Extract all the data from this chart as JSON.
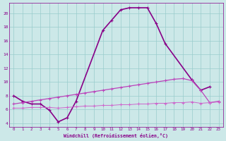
{
  "xlabel": "Windchill (Refroidissement éolien,°C)",
  "background_color": "#cce8e8",
  "grid_color": "#99cccc",
  "line_dark": "#880088",
  "line_mid": "#bb44bb",
  "line_light": "#cc66cc",
  "main_curve_x": [
    0,
    1,
    2,
    3,
    4,
    5,
    6,
    7,
    10,
    11,
    12,
    13,
    14,
    15,
    16,
    17,
    20,
    21,
    22
  ],
  "main_curve_y": [
    8.0,
    7.2,
    6.8,
    6.8,
    5.9,
    4.2,
    4.8,
    7.2,
    17.5,
    19.0,
    20.5,
    20.8,
    20.8,
    20.8,
    18.5,
    15.6,
    10.3,
    8.8,
    9.3
  ],
  "rise_curve_x": [
    0,
    1,
    2,
    3,
    4,
    5,
    6,
    7,
    8,
    9,
    10,
    11,
    12,
    13,
    14,
    15,
    16,
    17,
    18,
    19,
    20,
    21,
    22,
    23
  ],
  "rise_curve_y": [
    6.8,
    7.0,
    7.2,
    7.4,
    7.6,
    7.8,
    8.0,
    8.2,
    8.4,
    8.6,
    8.8,
    9.0,
    9.2,
    9.4,
    9.6,
    9.8,
    10.0,
    10.2,
    10.4,
    10.5,
    10.2,
    8.8,
    7.0,
    7.2
  ],
  "flat_curve_x": [
    0,
    1,
    2,
    3,
    4,
    5,
    6,
    7,
    8,
    9,
    10,
    11,
    12,
    13,
    14,
    15,
    16,
    17,
    18,
    19,
    20,
    21,
    22,
    23
  ],
  "flat_curve_y": [
    6.2,
    6.2,
    6.3,
    6.3,
    6.3,
    6.2,
    6.3,
    6.4,
    6.5,
    6.5,
    6.6,
    6.6,
    6.7,
    6.7,
    6.8,
    6.8,
    6.9,
    6.9,
    7.0,
    7.0,
    7.1,
    6.9,
    7.0,
    7.1
  ],
  "ylim_min": 3.5,
  "ylim_max": 21.5,
  "xlim_min": -0.5,
  "xlim_max": 23.5,
  "yticks": [
    4,
    6,
    8,
    10,
    12,
    14,
    16,
    18,
    20
  ],
  "xticks": [
    0,
    1,
    2,
    3,
    4,
    5,
    6,
    7,
    8,
    9,
    10,
    11,
    12,
    13,
    14,
    15,
    16,
    17,
    18,
    19,
    20,
    21,
    22,
    23
  ]
}
